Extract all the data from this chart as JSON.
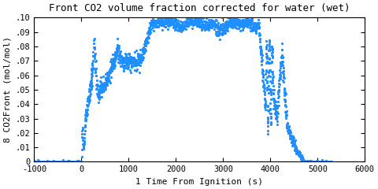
{
  "title": "Front CO2 volume fraction corrected for water (wet)",
  "xlabel": "1 Time From Ignition (s)",
  "ylabel": "8 CO2Front (mol/mol)",
  "xlim": [
    -1000,
    6000
  ],
  "ylim": [
    0,
    0.1
  ],
  "xticks": [
    -1000,
    0,
    1000,
    2000,
    3000,
    4000,
    5000,
    6000
  ],
  "yticks": [
    0,
    0.01,
    0.02,
    0.03,
    0.04,
    0.05,
    0.06,
    0.07,
    0.08,
    0.09,
    0.1
  ],
  "line_color": "#1e8fff",
  "marker": "*",
  "markersize": 1.8,
  "title_fontsize": 9,
  "label_fontsize": 8,
  "tick_fontsize": 7.5
}
